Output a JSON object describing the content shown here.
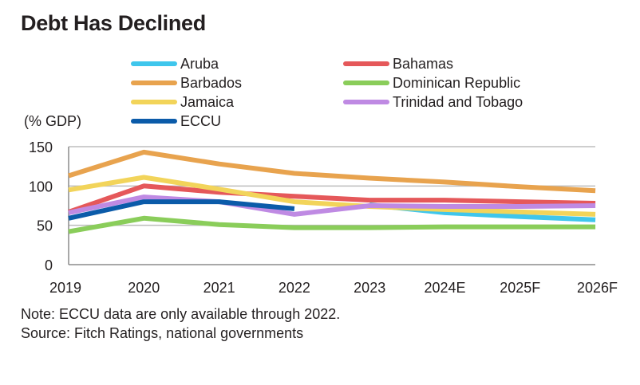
{
  "chart_data": {
    "type": "line",
    "title": "Debt Has Declined",
    "unit_label": "(% GDP)",
    "categories": [
      "2019",
      "2020",
      "2021",
      "2022",
      "2023",
      "2024E",
      "2025F",
      "2026F"
    ],
    "ylim": [
      0,
      150
    ],
    "yticks": [
      "150",
      "100",
      "50",
      "0"
    ],
    "grid": true,
    "series": [
      {
        "name": "Aruba",
        "color": "#3fc6ec",
        "values": [
          null,
          null,
          null,
          null,
          76,
          66,
          61,
          57
        ]
      },
      {
        "name": "Bahamas",
        "color": "#e5585a",
        "values": [
          67,
          100,
          92,
          87,
          82,
          82,
          80,
          78
        ]
      },
      {
        "name": "Barbados",
        "color": "#e8a34e",
        "values": [
          113,
          143,
          128,
          116,
          110,
          105,
          99,
          94
        ]
      },
      {
        "name": "Dominican Republic",
        "color": "#8acd5a",
        "values": [
          42,
          59,
          51,
          47,
          47,
          48,
          48,
          48
        ]
      },
      {
        "name": "Jamaica",
        "color": "#f2d45a",
        "values": [
          95,
          111,
          96,
          80,
          74,
          70,
          67,
          64
        ]
      },
      {
        "name": "Trinidad and Tobago",
        "color": "#bf8ae3",
        "values": [
          66,
          86,
          80,
          64,
          75,
          74,
          74,
          75
        ]
      },
      {
        "name": "ECCU",
        "color": "#0b5ba9",
        "values": [
          59,
          80,
          80,
          71,
          null,
          null,
          null,
          null
        ]
      }
    ]
  },
  "footnotes": {
    "note": "Note: ECCU data are only available through 2022.",
    "source": "Source: Fitch Ratings, national governments"
  }
}
